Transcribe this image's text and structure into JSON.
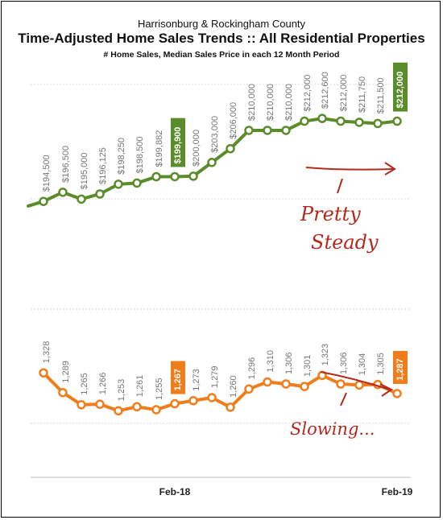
{
  "header": {
    "line1": "Harrisonburg & Rockingham County",
    "title": "Time-Adjusted Home Sales Trends  ::  All Residential Properties",
    "subtitle": "# Home Sales, Median Sales Price in each 12 Month Period"
  },
  "colors": {
    "price": "#5b8c2a",
    "sales": "#f07d1c",
    "annotation": "#b5281c",
    "grid": "#d9d9d9"
  },
  "annotations": {
    "price_note": [
      "Pretty",
      "Steady"
    ],
    "sales_note": "Slowing..."
  },
  "chart_data": [
    {
      "type": "line",
      "name": "median_price",
      "x_ticks": [
        "Feb-18",
        "Feb-19"
      ],
      "value_labels": [
        "",
        "$194,500",
        "$196,500",
        "$195,000",
        "$196,125",
        "$198,250",
        "$198,500",
        "$199,882",
        "$199,900",
        "$200,000",
        "$203,000",
        "$206,000",
        "$210,000",
        "$210,000",
        "$210,000",
        "$212,000",
        "$212,600",
        "$212,000",
        "$211,750",
        "$211,500",
        "$212,000"
      ],
      "values": [
        193500,
        194500,
        196500,
        195000,
        196125,
        198250,
        198500,
        199882,
        199900,
        200000,
        203000,
        206000,
        210000,
        210000,
        210000,
        212000,
        212600,
        212000,
        211750,
        211500,
        212000
      ],
      "highlight_indices": [
        8,
        20
      ],
      "ylim": [
        184000,
        220000
      ]
    },
    {
      "type": "line",
      "name": "home_sales",
      "x_ticks": [
        "Feb-18",
        "Feb-19"
      ],
      "value_labels": [
        "1,328",
        "1,289",
        "1,265",
        "1,266",
        "1,253",
        "1,261",
        "1,255",
        "1,267",
        "1,273",
        "1,279",
        "1,260",
        "1,296",
        "1,310",
        "1,306",
        "1,301",
        "1,323",
        "1,306",
        "1,304",
        "1,305",
        "1,287"
      ],
      "values": [
        1328,
        1289,
        1265,
        1266,
        1253,
        1261,
        1255,
        1267,
        1273,
        1279,
        1260,
        1296,
        1310,
        1306,
        1301,
        1323,
        1306,
        1304,
        1305,
        1287
      ],
      "highlight_indices": [
        7,
        19
      ],
      "ylim": [
        1150,
        1400
      ]
    }
  ]
}
